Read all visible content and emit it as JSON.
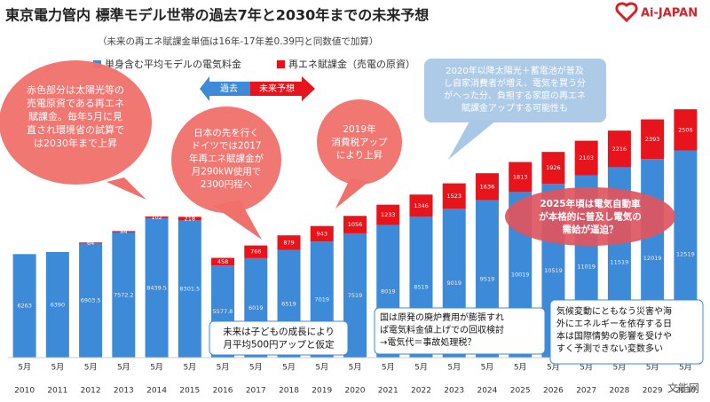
{
  "header": {
    "title": "東京電力管内 標準モデル世帯の過去7年と2030年までの未来予想",
    "subtitle": "（未来の再エネ賦課金単価は16年-17年差0.39円と同数値で加算）",
    "logo": "Ai-JAPAN"
  },
  "chart_data": {
    "type": "bar",
    "stacked": true,
    "categories": [
      "2010",
      "2011",
      "2012",
      "2013",
      "2014",
      "2015",
      "2016",
      "2017",
      "2018",
      "2019",
      "2020",
      "2021",
      "2022",
      "2023",
      "2024",
      "2025",
      "2026",
      "2027",
      "2028",
      "2029",
      "2030"
    ],
    "month_label": "5月",
    "series": [
      {
        "name": "単身含む平均モデルの電気料金",
        "color": "#3d8bd8",
        "values": [
          6263,
          6390,
          6903.5,
          7572.2,
          8439.5,
          8301.5,
          5577.8,
          6019,
          6519,
          7019,
          7519,
          8019,
          8519,
          9019,
          9519,
          10019,
          10519,
          11019,
          11519,
          12019,
          12519
        ]
      },
      {
        "name": "再エネ賦課金（売電の原資）",
        "color": "#e8141c",
        "values": [
          null,
          null,
          64,
          84,
          102,
          218,
          458,
          766,
          879,
          943,
          1056,
          1233,
          1346,
          1523,
          1636,
          1813,
          1926,
          2103,
          2216,
          2393,
          2506
        ]
      }
    ],
    "ylim": [
      0,
      15300
    ],
    "arrow": {
      "past": "過去",
      "future": "未来予想"
    }
  },
  "callouts": [
    {
      "lines": [
        "赤色部分は太陽光等の",
        "売電原資である再エネ",
        "賦課金。毎年5月に見",
        "直され環境省の試算で",
        "は2030年まで上昇"
      ]
    },
    {
      "lines": [
        "日本の先を行く",
        "ドイツでは2017",
        "年再エネ賦課金が",
        "月290kW使用で",
        "2300円程へ"
      ]
    },
    {
      "lines": [
        "2019年",
        "消費税アップ",
        "により上昇"
      ]
    },
    {
      "lines": [
        "2020年以降太陽光＋蓄電池が普及",
        "し自家消費者が増え、電気を買う分",
        "がへった分、負担する家庭の再エネ",
        "賦課金アップする可能性も"
      ]
    },
    {
      "lines": [
        "2025年頃は電気自動車",
        "が本格的に普及し電気の",
        "需給が逼迫？"
      ]
    },
    {
      "lines": [
        "未来は子どもの成長により",
        "月平均500円アップと仮定"
      ]
    },
    {
      "lines": [
        "国は原発の廃炉費用が膨張すれ",
        "ば電気料金値上げでの回収検討",
        "→電気代＝事故処理税？"
      ]
    },
    {
      "lines": [
        "気候変動にともなう災害や海",
        "外にエネルギーを依存する日",
        "本は国際情勢の影響を受けや",
        "すく予測できない変数多い"
      ]
    }
  ],
  "watermark": "文能网"
}
